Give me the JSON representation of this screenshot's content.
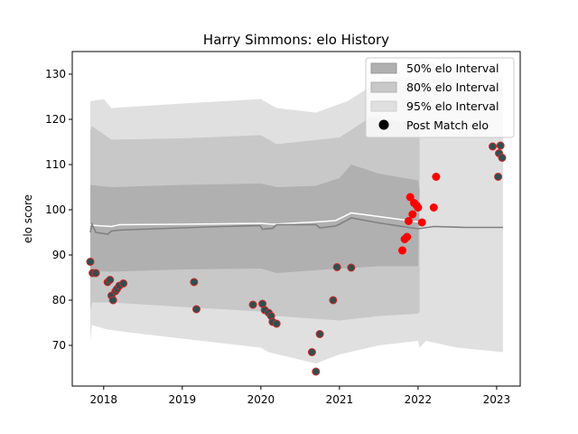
{
  "chart_data": {
    "type": "scatter",
    "title": "Harry Simmons: elo History",
    "xlabel": "",
    "ylabel": "elo score",
    "xlim": [
      2017.6,
      2023.3
    ],
    "ylim": [
      61,
      135
    ],
    "xticks": [
      {
        "value": 2018,
        "label": "2018"
      },
      {
        "value": 2019,
        "label": "2019"
      },
      {
        "value": 2020,
        "label": "2020"
      },
      {
        "value": 2021,
        "label": "2021"
      },
      {
        "value": 2022,
        "label": "2022"
      },
      {
        "value": 2023,
        "label": "2023"
      }
    ],
    "yticks": [
      {
        "value": 70,
        "label": "70"
      },
      {
        "value": 80,
        "label": "80"
      },
      {
        "value": 90,
        "label": "90"
      },
      {
        "value": 100,
        "label": "100"
      },
      {
        "value": 110,
        "label": "110"
      },
      {
        "value": 120,
        "label": "120"
      },
      {
        "value": 130,
        "label": "130"
      }
    ],
    "legend": {
      "placement": "top-right",
      "entries": [
        {
          "label": "50% elo Interval",
          "color": "#b0b0b0"
        },
        {
          "label": "80% elo Interval",
          "color": "#c8c8c8"
        },
        {
          "label": "95% elo Interval",
          "color": "#e0e0e0"
        },
        {
          "label": "Post Match elo",
          "color": "#000000"
        }
      ]
    },
    "median_line_historic": {
      "color": "#808080",
      "points": [
        [
          2017.83,
          95.0
        ],
        [
          2017.85,
          96.8
        ],
        [
          2017.9,
          95.0
        ],
        [
          2018.05,
          94.6
        ],
        [
          2018.1,
          95.3
        ],
        [
          2018.2,
          95.5
        ],
        [
          2018.5,
          95.7
        ],
        [
          2019.0,
          96.0
        ],
        [
          2019.5,
          96.3
        ],
        [
          2019.99,
          96.5
        ],
        [
          2020.02,
          95.7
        ],
        [
          2020.15,
          95.9
        ],
        [
          2020.2,
          96.7
        ],
        [
          2020.7,
          96.7
        ],
        [
          2020.75,
          96.0
        ],
        [
          2020.95,
          96.4
        ],
        [
          2021.0,
          96.8
        ],
        [
          2021.15,
          98.2
        ],
        [
          2021.5,
          97.1
        ],
        [
          2021.8,
          96.3
        ],
        [
          2022.0,
          95.8
        ]
      ]
    },
    "median_line_white": {
      "color": "#ffffff",
      "points": [
        [
          2017.83,
          96.6
        ],
        [
          2018.1,
          96.3
        ],
        [
          2018.2,
          96.7
        ],
        [
          2019.0,
          96.8
        ],
        [
          2020.0,
          97.0
        ],
        [
          2020.15,
          96.8
        ],
        [
          2020.7,
          97.3
        ],
        [
          2020.95,
          97.6
        ],
        [
          2021.15,
          99.3
        ],
        [
          2021.5,
          98.5
        ],
        [
          2021.8,
          97.8
        ],
        [
          2022.0,
          97.3
        ]
      ]
    },
    "median_line_future": {
      "color": "#808080",
      "points": [
        [
          2022.0,
          95.8
        ],
        [
          2022.2,
          96.3
        ],
        [
          2022.6,
          96.1
        ],
        [
          2023.08,
          96.1
        ]
      ]
    },
    "band95": {
      "color": "#e0e0e0",
      "upper": [
        [
          2017.83,
          124.0
        ],
        [
          2018.0,
          124.5
        ],
        [
          2018.1,
          122.5
        ],
        [
          2019.0,
          123.5
        ],
        [
          2020.0,
          124.5
        ],
        [
          2020.2,
          122.5
        ],
        [
          2020.7,
          121.5
        ],
        [
          2021.1,
          124.0
        ],
        [
          2021.6,
          129.5
        ],
        [
          2022.0,
          129.0
        ],
        [
          2022.02,
          133.0
        ],
        [
          2022.1,
          133.0
        ],
        [
          2022.5,
          130.5
        ],
        [
          2023.08,
          129.5
        ]
      ],
      "lower": [
        [
          2017.83,
          71.0
        ],
        [
          2017.85,
          74.5
        ],
        [
          2018.05,
          73.5
        ],
        [
          2018.5,
          72.5
        ],
        [
          2019.0,
          71.5
        ],
        [
          2020.0,
          69.5
        ],
        [
          2020.1,
          68.5
        ],
        [
          2020.7,
          66.0
        ],
        [
          2021.0,
          68.0
        ],
        [
          2021.5,
          70.0
        ],
        [
          2022.0,
          71.0
        ],
        [
          2022.02,
          69.5
        ],
        [
          2022.1,
          71.0
        ],
        [
          2022.5,
          69.5
        ],
        [
          2023.08,
          68.5
        ]
      ]
    },
    "band80": {
      "color": "#c8c8c8",
      "upper": [
        [
          2017.83,
          117.5
        ],
        [
          2017.85,
          118.5
        ],
        [
          2018.1,
          115.5
        ],
        [
          2019.0,
          115.8
        ],
        [
          2020.0,
          116.5
        ],
        [
          2020.2,
          114.5
        ],
        [
          2021.0,
          116.0
        ],
        [
          2021.4,
          120.5
        ],
        [
          2022.0,
          119.0
        ],
        [
          2022.02,
          116.5
        ]
      ],
      "lower": [
        [
          2017.83,
          77.5
        ],
        [
          2017.85,
          79.5
        ],
        [
          2018.1,
          79.5
        ],
        [
          2019.0,
          78.5
        ],
        [
          2020.0,
          77.5
        ],
        [
          2020.2,
          76.5
        ],
        [
          2021.0,
          75.5
        ],
        [
          2021.5,
          76.5
        ],
        [
          2022.0,
          77.0
        ],
        [
          2022.02,
          77.5
        ]
      ]
    },
    "band50": {
      "color": "#b0b0b0",
      "upper": [
        [
          2017.83,
          105.5
        ],
        [
          2018.1,
          105.0
        ],
        [
          2019.0,
          105.5
        ],
        [
          2020.0,
          105.8
        ],
        [
          2020.2,
          105.0
        ],
        [
          2020.7,
          105.3
        ],
        [
          2021.0,
          107.0
        ],
        [
          2021.15,
          110.0
        ],
        [
          2021.5,
          108.0
        ],
        [
          2022.0,
          106.5
        ],
        [
          2022.02,
          104.5
        ]
      ],
      "lower": [
        [
          2017.83,
          86.5
        ],
        [
          2018.1,
          86.3
        ],
        [
          2019.0,
          86.8
        ],
        [
          2020.0,
          87.0
        ],
        [
          2020.2,
          86.0
        ],
        [
          2021.0,
          87.0
        ],
        [
          2021.5,
          87.5
        ],
        [
          2022.0,
          87.5
        ]
      ]
    },
    "future_band_edges": [
      {
        "color": "#e0e0e0",
        "upper": [
          [
            2022.05,
            103.6
          ],
          [
            2023.08,
            104.0
          ]
        ],
        "lower": [
          [
            2022.05,
            88.0
          ],
          [
            2023.08,
            87.5
          ]
        ]
      },
      {
        "color": "#e0e0e0",
        "upper": [
          [
            2022.05,
            112.0
          ],
          [
            2023.08,
            113.0
          ]
        ],
        "lower": [
          [
            2022.05,
            79.0
          ],
          [
            2023.08,
            77.0
          ]
        ]
      }
    ],
    "past_matches": {
      "name": "Post Match elo",
      "fill": "#2f4f4f",
      "edge": "#d62728",
      "points": [
        [
          2017.83,
          88.5
        ],
        [
          2017.86,
          86.0
        ],
        [
          2017.9,
          86.0
        ],
        [
          2018.05,
          84.0
        ],
        [
          2018.08,
          84.5
        ],
        [
          2018.1,
          81.0
        ],
        [
          2018.12,
          80.0
        ],
        [
          2018.15,
          82.0
        ],
        [
          2018.17,
          82.5
        ],
        [
          2018.2,
          83.2
        ],
        [
          2018.25,
          83.7
        ],
        [
          2019.15,
          84.0
        ],
        [
          2019.18,
          78.0
        ],
        [
          2019.9,
          79.0
        ],
        [
          2020.02,
          79.2
        ],
        [
          2020.05,
          77.8
        ],
        [
          2020.1,
          77.2
        ],
        [
          2020.13,
          76.5
        ],
        [
          2020.15,
          75.2
        ],
        [
          2020.2,
          74.8
        ],
        [
          2020.65,
          68.5
        ],
        [
          2020.7,
          64.2
        ],
        [
          2020.75,
          72.5
        ],
        [
          2020.92,
          80.0
        ],
        [
          2020.97,
          87.3
        ],
        [
          2021.15,
          87.2
        ],
        [
          2022.95,
          114.0
        ],
        [
          2023.02,
          107.3
        ],
        [
          2023.03,
          112.5
        ],
        [
          2023.05,
          114.2
        ],
        [
          2023.07,
          111.5
        ]
      ]
    },
    "recent_matches": {
      "fill": "#ff0000",
      "points": [
        [
          2021.8,
          91.0
        ],
        [
          2021.83,
          93.5
        ],
        [
          2021.86,
          94.0
        ],
        [
          2021.88,
          97.5
        ],
        [
          2021.9,
          102.8
        ],
        [
          2021.93,
          99.0
        ],
        [
          2021.95,
          101.5
        ],
        [
          2021.98,
          101.0
        ],
        [
          2022.0,
          100.5
        ],
        [
          2022.05,
          97.2
        ],
        [
          2022.2,
          100.5
        ],
        [
          2022.23,
          107.3
        ]
      ]
    }
  }
}
